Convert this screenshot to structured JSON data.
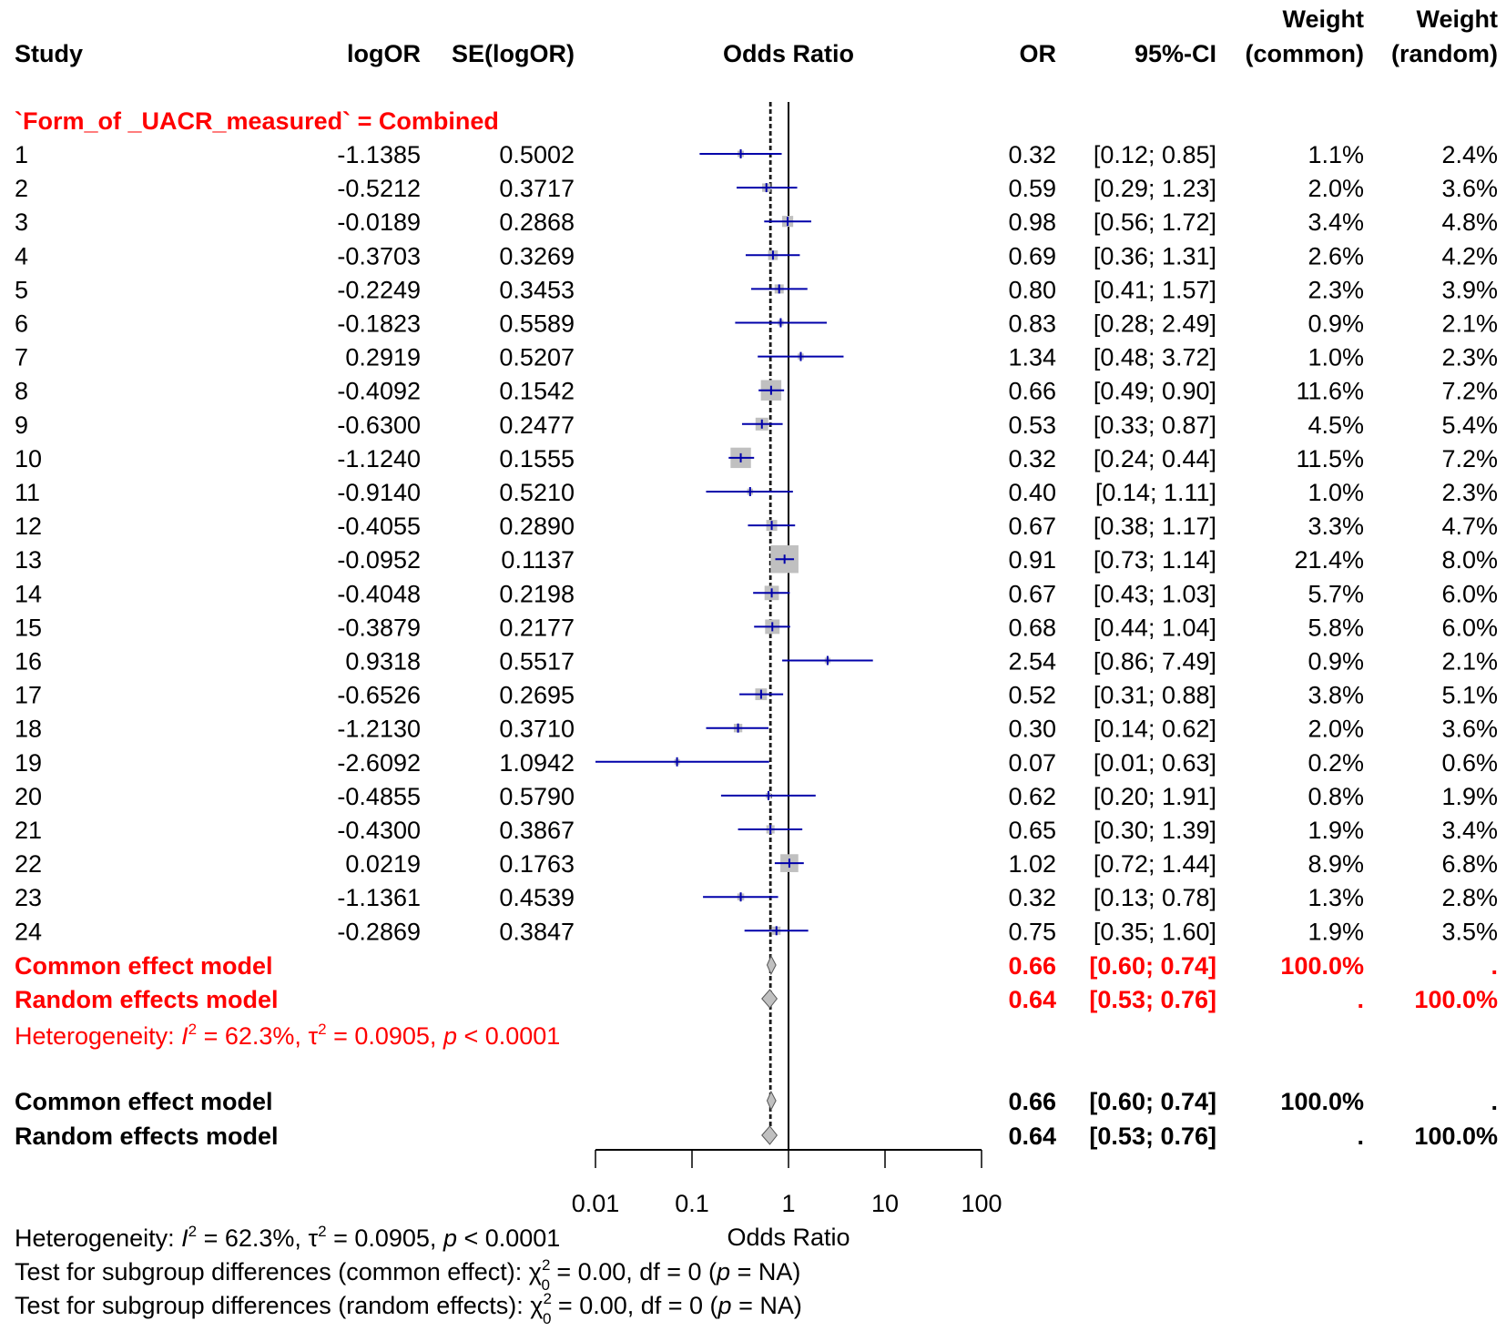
{
  "chart_data": {
    "type": "forest",
    "xlabel": "Odds Ratio",
    "x_scale": "log",
    "xlim": [
      0.01,
      100
    ],
    "xticks": [
      "0.01",
      "0.1",
      "1",
      "10",
      "100"
    ],
    "headers": {
      "study": "Study",
      "logOR": "logOR",
      "se": "SE(logOR)",
      "plot": "Odds Ratio",
      "or": "OR",
      "ci": "95%-CI",
      "w_common_top": "Weight",
      "w_common_bottom": "(common)",
      "w_random_top": "Weight",
      "w_random_bottom": "(random)"
    },
    "subgroup_label": "`Form_of _UACR_measured` = Combined",
    "studies": [
      {
        "study": "1",
        "logOR": "-1.1385",
        "se": "0.5002",
        "or": 0.32,
        "lo": 0.12,
        "hi": 0.85,
        "ci": "[0.12; 0.85]",
        "or_txt": "0.32",
        "wc": "1.1%",
        "wr": "2.4%",
        "wc_val": 1.1
      },
      {
        "study": "2",
        "logOR": "-0.5212",
        "se": "0.3717",
        "or": 0.59,
        "lo": 0.29,
        "hi": 1.23,
        "ci": "[0.29; 1.23]",
        "or_txt": "0.59",
        "wc": "2.0%",
        "wr": "3.6%",
        "wc_val": 2.0
      },
      {
        "study": "3",
        "logOR": "-0.0189",
        "se": "0.2868",
        "or": 0.98,
        "lo": 0.56,
        "hi": 1.72,
        "ci": "[0.56; 1.72]",
        "or_txt": "0.98",
        "wc": "3.4%",
        "wr": "4.8%",
        "wc_val": 3.4
      },
      {
        "study": "4",
        "logOR": "-0.3703",
        "se": "0.3269",
        "or": 0.69,
        "lo": 0.36,
        "hi": 1.31,
        "ci": "[0.36; 1.31]",
        "or_txt": "0.69",
        "wc": "2.6%",
        "wr": "4.2%",
        "wc_val": 2.6
      },
      {
        "study": "5",
        "logOR": "-0.2249",
        "se": "0.3453",
        "or": 0.8,
        "lo": 0.41,
        "hi": 1.57,
        "ci": "[0.41; 1.57]",
        "or_txt": "0.80",
        "wc": "2.3%",
        "wr": "3.9%",
        "wc_val": 2.3
      },
      {
        "study": "6",
        "logOR": "-0.1823",
        "se": "0.5589",
        "or": 0.83,
        "lo": 0.28,
        "hi": 2.49,
        "ci": "[0.28; 2.49]",
        "or_txt": "0.83",
        "wc": "0.9%",
        "wr": "2.1%",
        "wc_val": 0.9
      },
      {
        "study": "7",
        "logOR": "0.2919",
        "se": "0.5207",
        "or": 1.34,
        "lo": 0.48,
        "hi": 3.72,
        "ci": "[0.48; 3.72]",
        "or_txt": "1.34",
        "wc": "1.0%",
        "wr": "2.3%",
        "wc_val": 1.0
      },
      {
        "study": "8",
        "logOR": "-0.4092",
        "se": "0.1542",
        "or": 0.66,
        "lo": 0.49,
        "hi": 0.9,
        "ci": "[0.49; 0.90]",
        "or_txt": "0.66",
        "wc": "11.6%",
        "wr": "7.2%",
        "wc_val": 11.6
      },
      {
        "study": "9",
        "logOR": "-0.6300",
        "se": "0.2477",
        "or": 0.53,
        "lo": 0.33,
        "hi": 0.87,
        "ci": "[0.33; 0.87]",
        "or_txt": "0.53",
        "wc": "4.5%",
        "wr": "5.4%",
        "wc_val": 4.5
      },
      {
        "study": "10",
        "logOR": "-1.1240",
        "se": "0.1555",
        "or": 0.32,
        "lo": 0.24,
        "hi": 0.44,
        "ci": "[0.24; 0.44]",
        "or_txt": "0.32",
        "wc": "11.5%",
        "wr": "7.2%",
        "wc_val": 11.5
      },
      {
        "study": "11",
        "logOR": "-0.9140",
        "se": "0.5210",
        "or": 0.4,
        "lo": 0.14,
        "hi": 1.11,
        "ci": "[0.14; 1.11]",
        "or_txt": "0.40",
        "wc": "1.0%",
        "wr": "2.3%",
        "wc_val": 1.0
      },
      {
        "study": "12",
        "logOR": "-0.4055",
        "se": "0.2890",
        "or": 0.67,
        "lo": 0.38,
        "hi": 1.17,
        "ci": "[0.38; 1.17]",
        "or_txt": "0.67",
        "wc": "3.3%",
        "wr": "4.7%",
        "wc_val": 3.3
      },
      {
        "study": "13",
        "logOR": "-0.0952",
        "se": "0.1137",
        "or": 0.91,
        "lo": 0.73,
        "hi": 1.14,
        "ci": "[0.73; 1.14]",
        "or_txt": "0.91",
        "wc": "21.4%",
        "wr": "8.0%",
        "wc_val": 21.4
      },
      {
        "study": "14",
        "logOR": "-0.4048",
        "se": "0.2198",
        "or": 0.67,
        "lo": 0.43,
        "hi": 1.03,
        "ci": "[0.43; 1.03]",
        "or_txt": "0.67",
        "wc": "5.7%",
        "wr": "6.0%",
        "wc_val": 5.7
      },
      {
        "study": "15",
        "logOR": "-0.3879",
        "se": "0.2177",
        "or": 0.68,
        "lo": 0.44,
        "hi": 1.04,
        "ci": "[0.44; 1.04]",
        "or_txt": "0.68",
        "wc": "5.8%",
        "wr": "6.0%",
        "wc_val": 5.8
      },
      {
        "study": "16",
        "logOR": "0.9318",
        "se": "0.5517",
        "or": 2.54,
        "lo": 0.86,
        "hi": 7.49,
        "ci": "[0.86; 7.49]",
        "or_txt": "2.54",
        "wc": "0.9%",
        "wr": "2.1%",
        "wc_val": 0.9
      },
      {
        "study": "17",
        "logOR": "-0.6526",
        "se": "0.2695",
        "or": 0.52,
        "lo": 0.31,
        "hi": 0.88,
        "ci": "[0.31; 0.88]",
        "or_txt": "0.52",
        "wc": "3.8%",
        "wr": "5.1%",
        "wc_val": 3.8
      },
      {
        "study": "18",
        "logOR": "-1.2130",
        "se": "0.3710",
        "or": 0.3,
        "lo": 0.14,
        "hi": 0.62,
        "ci": "[0.14; 0.62]",
        "or_txt": "0.30",
        "wc": "2.0%",
        "wr": "3.6%",
        "wc_val": 2.0
      },
      {
        "study": "19",
        "logOR": "-2.6092",
        "se": "1.0942",
        "or": 0.07,
        "lo": 0.01,
        "hi": 0.63,
        "ci": "[0.01; 0.63]",
        "or_txt": "0.07",
        "wc": "0.2%",
        "wr": "0.6%",
        "wc_val": 0.2
      },
      {
        "study": "20",
        "logOR": "-0.4855",
        "se": "0.5790",
        "or": 0.62,
        "lo": 0.2,
        "hi": 1.91,
        "ci": "[0.20; 1.91]",
        "or_txt": "0.62",
        "wc": "0.8%",
        "wr": "1.9%",
        "wc_val": 0.8
      },
      {
        "study": "21",
        "logOR": "-0.4300",
        "se": "0.3867",
        "or": 0.65,
        "lo": 0.3,
        "hi": 1.39,
        "ci": "[0.30; 1.39]",
        "or_txt": "0.65",
        "wc": "1.9%",
        "wr": "3.4%",
        "wc_val": 1.9
      },
      {
        "study": "22",
        "logOR": "0.0219",
        "se": "0.1763",
        "or": 1.02,
        "lo": 0.72,
        "hi": 1.44,
        "ci": "[0.72; 1.44]",
        "or_txt": "1.02",
        "wc": "8.9%",
        "wr": "6.8%",
        "wc_val": 8.9
      },
      {
        "study": "23",
        "logOR": "-1.1361",
        "se": "0.4539",
        "or": 0.32,
        "lo": 0.13,
        "hi": 0.78,
        "ci": "[0.13; 0.78]",
        "or_txt": "0.32",
        "wc": "1.3%",
        "wr": "2.8%",
        "wc_val": 1.3
      },
      {
        "study": "24",
        "logOR": "-0.2869",
        "se": "0.3847",
        "or": 0.75,
        "lo": 0.35,
        "hi": 1.6,
        "ci": "[0.35; 1.60]",
        "or_txt": "0.75",
        "wc": "1.9%",
        "wr": "3.5%",
        "wc_val": 1.9
      }
    ],
    "subgroup_models": [
      {
        "label": "Common effect model",
        "or": 0.66,
        "lo": 0.6,
        "hi": 0.74,
        "or_txt": "0.66",
        "ci": "[0.60; 0.74]",
        "wc": "100.0%",
        "wr": "."
      },
      {
        "label": "Random effects model",
        "or": 0.64,
        "lo": 0.53,
        "hi": 0.76,
        "or_txt": "0.64",
        "ci": "[0.53; 0.76]",
        "wc": ".",
        "wr": "100.0%"
      }
    ],
    "subgroup_heterogeneity": [
      {
        "t": "Heterogeneity: "
      },
      {
        "t": "I",
        "i": true
      },
      {
        "t": "2",
        "sup": true
      },
      {
        "t": " = 62.3%, "
      },
      {
        "t": "τ"
      },
      {
        "t": "2",
        "sup": true
      },
      {
        "t": " = 0.0905, "
      },
      {
        "t": "p",
        "i": true
      },
      {
        "t": " < 0.0001"
      }
    ],
    "overall_models": [
      {
        "label": "Common effect model",
        "or": 0.66,
        "lo": 0.6,
        "hi": 0.74,
        "or_txt": "0.66",
        "ci": "[0.60; 0.74]",
        "wc": "100.0%",
        "wr": "."
      },
      {
        "label": "Random effects model",
        "or": 0.64,
        "lo": 0.53,
        "hi": 0.76,
        "or_txt": "0.64",
        "ci": "[0.53; 0.76]",
        "wc": ".",
        "wr": "100.0%"
      }
    ],
    "footer": [
      [
        {
          "t": "Heterogeneity: "
        },
        {
          "t": "I",
          "i": true
        },
        {
          "t": "2",
          "sup": true
        },
        {
          "t": " = 62.3%, "
        },
        {
          "t": "τ"
        },
        {
          "t": "2",
          "sup": true
        },
        {
          "t": " = 0.0905, "
        },
        {
          "t": "p",
          "i": true
        },
        {
          "t": " < 0.0001"
        }
      ],
      [
        {
          "t": "Test for subgroup differences (common effect): "
        },
        {
          "t": "χ"
        },
        {
          "t": "2",
          "sup": true
        },
        {
          "t": "0",
          "sub": true
        },
        {
          "t": " = 0.00, df = 0 ("
        },
        {
          "t": "p",
          "i": true
        },
        {
          "t": " = NA)"
        }
      ],
      [
        {
          "t": "Test for subgroup differences (random effects): "
        },
        {
          "t": "χ"
        },
        {
          "t": "2",
          "sup": true
        },
        {
          "t": "0",
          "sub": true
        },
        {
          "t": " = 0.00, df = 0 ("
        },
        {
          "t": "p",
          "i": true
        },
        {
          "t": " = NA)"
        }
      ]
    ],
    "colors": {
      "text": "#000000",
      "subgroup": "#ff0000",
      "ci_line": "#0000aa",
      "square": "#c0c0c0",
      "diamond": "#c0c0c0"
    }
  }
}
